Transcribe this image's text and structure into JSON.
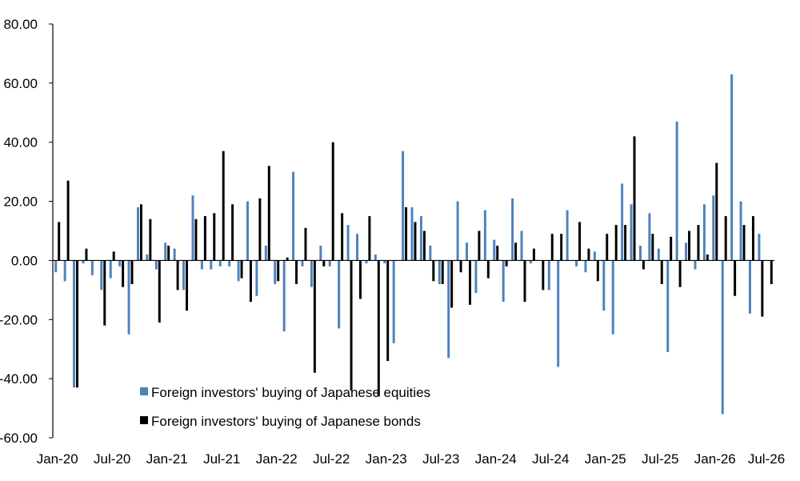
{
  "chart_data": {
    "type": "bar",
    "title": "",
    "xlabel": "",
    "ylabel": "",
    "ylim": [
      -60,
      80
    ],
    "yticks": [
      "80.00",
      "60.00",
      "40.00",
      "20.00",
      "0.00",
      "-20.00",
      "-40.00",
      "-60.00"
    ],
    "ytick_values": [
      80,
      60,
      40,
      20,
      0,
      -20,
      -40,
      -60
    ],
    "xtick_labels": [
      "Jan-20",
      "Jul-20",
      "Jan-21",
      "Jul-21",
      "Jan-22",
      "Jul-22",
      "Jan-23",
      "Jul-23",
      "Jan-24",
      "Jul-24",
      "Jan-25",
      "Jul-25",
      "Jan-26",
      "Jul-26"
    ],
    "categories": [
      "Jan-20",
      "Feb-20",
      "Mar-20",
      "Apr-20",
      "May-20",
      "Jun-20",
      "Jul-20",
      "Aug-20",
      "Sep-20",
      "Oct-20",
      "Nov-20",
      "Dec-20",
      "Jan-21",
      "Feb-21",
      "Mar-21",
      "Apr-21",
      "May-21",
      "Jun-21",
      "Jul-21",
      "Aug-21",
      "Sep-21",
      "Oct-21",
      "Nov-21",
      "Dec-21",
      "Jan-22",
      "Feb-22",
      "Mar-22",
      "Apr-22",
      "May-22",
      "Jun-22",
      "Jul-22",
      "Aug-22",
      "Sep-22",
      "Oct-22",
      "Nov-22",
      "Dec-22",
      "Jan-23",
      "Feb-23",
      "Mar-23",
      "Apr-23",
      "May-23",
      "Jun-23",
      "Jul-23",
      "Aug-23",
      "Sep-23",
      "Oct-23",
      "Nov-23",
      "Dec-23",
      "Jan-24",
      "Feb-24",
      "Mar-24",
      "Apr-24",
      "May-24",
      "Jun-24",
      "Jul-24",
      "Aug-24",
      "Sep-24",
      "Oct-24",
      "Nov-24",
      "Dec-24",
      "Jan-25",
      "Feb-25",
      "Mar-25",
      "Apr-25",
      "May-25",
      "Jun-25",
      "Jul-25",
      "Aug-25",
      "Sep-25",
      "Oct-25",
      "Nov-25",
      "Dec-25",
      "Jan-26",
      "Feb-26",
      "Mar-26",
      "Apr-26",
      "May-26",
      "Jun-26",
      "Jul-26"
    ],
    "legend_position": "bottom-left",
    "grid": false,
    "series": [
      {
        "name": "Foreign investors' buying of Japanese equities",
        "color": "#4f81bd",
        "values": [
          -4,
          -7,
          -43,
          -1,
          -5,
          -10,
          -6,
          -2,
          -25,
          18,
          2,
          -3,
          6,
          4,
          -10,
          22,
          -3,
          -3,
          -2,
          -2,
          -7,
          20,
          -12,
          5,
          -8,
          -24,
          30,
          -2,
          -9,
          5,
          -2,
          -23,
          12,
          9,
          -1,
          2,
          -1,
          -28,
          37,
          18,
          15,
          5,
          -8,
          -33,
          20,
          6,
          -11,
          17,
          7,
          -14,
          21,
          10,
          -1,
          0,
          -10,
          -36,
          17,
          -2,
          -4,
          3,
          -17,
          -25,
          26,
          19,
          5,
          16,
          4,
          -31,
          47,
          6,
          -3,
          19,
          22,
          -52,
          63,
          20,
          -18,
          9,
          0
        ],
        "value_count_note": ""
      },
      {
        "name": "Foreign investors' buying of Japanese bonds",
        "color": "#000000",
        "values": [
          13,
          27,
          -43,
          4,
          0,
          -22,
          3,
          -9,
          -8,
          19,
          14,
          -21,
          5,
          -10,
          -17,
          14,
          15,
          16,
          37,
          19,
          -6,
          -14,
          21,
          32,
          -7,
          1,
          -8,
          11,
          -38,
          -2,
          40,
          16,
          -44,
          -13,
          15,
          -46,
          -34,
          0,
          18,
          13,
          10,
          -7,
          -8,
          -16,
          -4,
          -15,
          10,
          -6,
          5,
          -2,
          6,
          -14,
          4,
          -10,
          9,
          9,
          0,
          13,
          4,
          -7,
          9,
          12,
          12,
          42,
          -3,
          9,
          -8,
          8,
          -9,
          10,
          12,
          2,
          33,
          15,
          -12,
          12,
          15,
          -19,
          -8
        ]
      }
    ]
  }
}
